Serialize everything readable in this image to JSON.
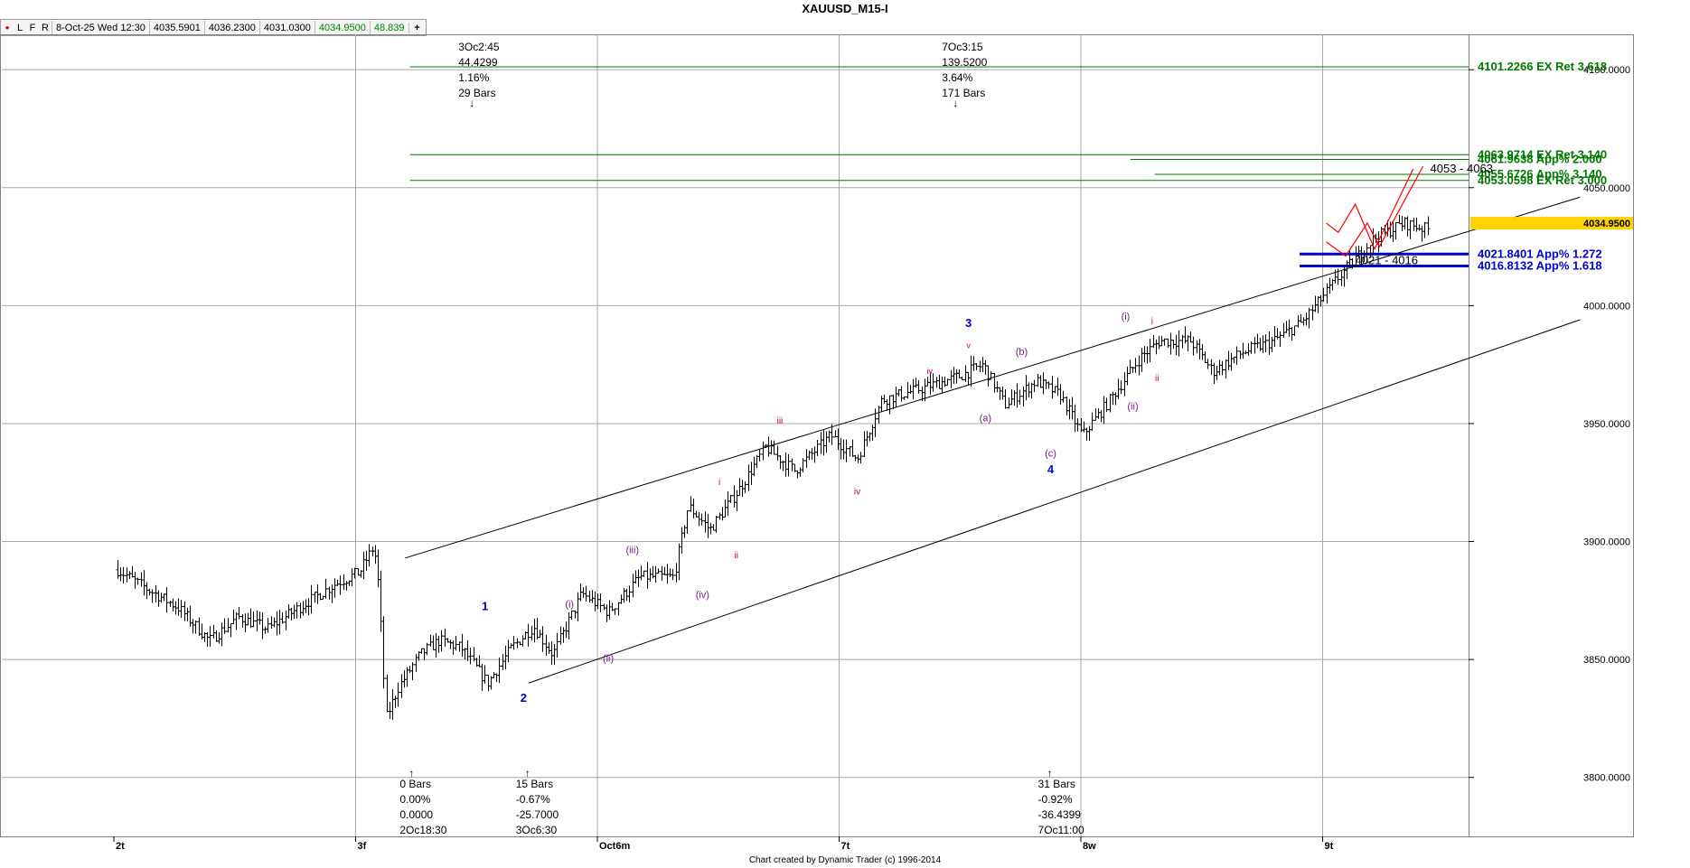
{
  "window": {
    "title": "XAUUSD_M15-I"
  },
  "infobar": {
    "buttons": [
      "●",
      "L",
      "F",
      "R"
    ],
    "datetime": "8-Oct-25 Wed 12:30",
    "open": "4035.5901",
    "high": "4036.2300",
    "low": "4031.0300",
    "close": "4034.9500",
    "change": "48.839",
    "add_label": "+"
  },
  "credit": "Chart created by Dynamic Trader  (c) 1996-2014",
  "colors": {
    "bars": "#000000",
    "ratio_green": "#007700",
    "ratio_blue": "#0000cc",
    "wave_major": "#0000cc",
    "wave_purple": "#7a1a8a",
    "wave_red": "#cc0033",
    "projection": "#ff0000",
    "grid": "#a8a8a8",
    "current_price_bg": "#ffd200"
  },
  "chart_data": {
    "type": "ohlc",
    "symbol": "XAUUSD_M15-I",
    "x_ticks": [
      "2t",
      "3f",
      "Oct6m",
      "7t",
      "8w",
      "9t"
    ],
    "y_ticks": [
      "3800.0000",
      "3850.0000",
      "3900.0000",
      "3950.0000",
      "4000.0000",
      "4050.0000",
      "4100.0000"
    ],
    "ylim": [
      3775,
      4115
    ],
    "current_price": "4034.9500",
    "price_path": [
      [
        0.0,
        3888
      ],
      [
        0.12,
        3880
      ],
      [
        0.25,
        3872
      ],
      [
        0.38,
        3858
      ],
      [
        0.5,
        3868
      ],
      [
        0.62,
        3863
      ],
      [
        0.75,
        3872
      ],
      [
        0.9,
        3882
      ],
      [
        1.0,
        3887
      ],
      [
        1.06,
        3898
      ],
      [
        1.08,
        3880
      ],
      [
        1.11,
        3825
      ],
      [
        1.16,
        3838
      ],
      [
        1.25,
        3852
      ],
      [
        1.33,
        3858
      ],
      [
        1.42,
        3855
      ],
      [
        1.53,
        3840
      ],
      [
        1.63,
        3855
      ],
      [
        1.72,
        3864
      ],
      [
        1.8,
        3852
      ],
      [
        1.92,
        3878
      ],
      [
        2.03,
        3870
      ],
      [
        2.16,
        3885
      ],
      [
        2.3,
        3885
      ],
      [
        2.36,
        3915
      ],
      [
        2.45,
        3905
      ],
      [
        2.57,
        3922
      ],
      [
        2.68,
        3940
      ],
      [
        2.8,
        3930
      ],
      [
        2.95,
        3945
      ],
      [
        3.06,
        3935
      ],
      [
        3.16,
        3960
      ],
      [
        3.33,
        3965
      ],
      [
        3.48,
        3970
      ],
      [
        3.58,
        3975
      ],
      [
        3.67,
        3958
      ],
      [
        3.8,
        3968
      ],
      [
        3.9,
        3962
      ],
      [
        3.99,
        3945
      ],
      [
        4.09,
        3958
      ],
      [
        4.23,
        3978
      ],
      [
        4.31,
        3985
      ],
      [
        4.44,
        3985
      ],
      [
        4.53,
        3972
      ],
      [
        4.65,
        3980
      ],
      [
        4.78,
        3985
      ],
      [
        4.9,
        3993
      ],
      [
        5.05,
        4012
      ],
      [
        5.19,
        4028
      ],
      [
        5.32,
        4035
      ],
      [
        5.43,
        4032
      ]
    ],
    "channel_lines": [
      {
        "from": [
          1.19,
          3893
        ],
        "to": [
          6.05,
          4046
        ]
      },
      {
        "from": [
          1.7,
          3840
        ],
        "to": [
          6.05,
          3994
        ]
      }
    ],
    "ratio_lines": [
      {
        "label": "4101.2266 EX Ret 3.618",
        "price": 4101.2266,
        "color": "green",
        "x_start": 1.21
      },
      {
        "label": "4063.9714 EX Ret 3.140",
        "price": 4063.9714,
        "color": "green",
        "x_start": 1.21
      },
      {
        "label": "4061.9638 App% 2.000",
        "price": 4061.9638,
        "color": "green",
        "x_start": 4.19
      },
      {
        "label": "4055.6726 App% 3.140",
        "price": 4055.6726,
        "color": "green",
        "x_start": 4.29
      },
      {
        "label": "4053.0598 EX Ret 3.000",
        "price": 4053.0598,
        "color": "green",
        "x_start": 1.21
      },
      {
        "label": "4021.8401 App% 1.272",
        "price": 4021.8401,
        "color": "blue",
        "x_start": 4.89
      },
      {
        "label": "4016.8132 App% 1.618",
        "price": 4016.8132,
        "color": "blue",
        "x_start": 4.89
      }
    ],
    "zones": [
      {
        "label": "4053 - 4063",
        "x": 5.43,
        "price": 4058
      },
      {
        "label": "4021 - 4016",
        "x": 5.12,
        "price": 4019
      }
    ],
    "projection_paths": [
      [
        [
          5.0,
          4035
        ],
        [
          5.05,
          4031
        ],
        [
          5.12,
          4043
        ],
        [
          5.2,
          4024
        ],
        [
          5.36,
          4058
        ]
      ],
      [
        [
          5.0,
          4027
        ],
        [
          5.08,
          4021
        ],
        [
          5.17,
          4035
        ],
        [
          5.22,
          4025
        ],
        [
          5.4,
          4059
        ]
      ]
    ],
    "wave_labels": [
      {
        "text": "1",
        "x": 1.52,
        "price": 3871,
        "kind": "major"
      },
      {
        "text": "2",
        "x": 1.68,
        "price": 3832,
        "kind": "major"
      },
      {
        "text": "3",
        "x": 3.52,
        "price": 3991,
        "kind": "major"
      },
      {
        "text": "4",
        "x": 3.86,
        "price": 3929,
        "kind": "major"
      },
      {
        "text": "(i)",
        "x": 1.87,
        "price": 3872,
        "kind": "minor"
      },
      {
        "text": "(ii)",
        "x": 2.03,
        "price": 3849,
        "kind": "minor"
      },
      {
        "text": "(iii)",
        "x": 2.13,
        "price": 3895,
        "kind": "minor"
      },
      {
        "text": "(iv)",
        "x": 2.42,
        "price": 3876,
        "kind": "minor"
      },
      {
        "text": "(a)",
        "x": 3.59,
        "price": 3951,
        "kind": "minor"
      },
      {
        "text": "(b)",
        "x": 3.74,
        "price": 3979,
        "kind": "minor"
      },
      {
        "text": "(c)",
        "x": 3.86,
        "price": 3936,
        "kind": "minor"
      },
      {
        "text": "(i)",
        "x": 4.17,
        "price": 3994,
        "kind": "minor"
      },
      {
        "text": "(ii)",
        "x": 4.2,
        "price": 3956,
        "kind": "minor"
      },
      {
        "text": "v",
        "x": 3.52,
        "price": 3982,
        "kind": "red_small"
      },
      {
        "text": "iv",
        "x": 3.36,
        "price": 3971,
        "kind": "red_small"
      },
      {
        "text": "i",
        "x": 2.49,
        "price": 3924,
        "kind": "red"
      },
      {
        "text": "ii",
        "x": 2.56,
        "price": 3893,
        "kind": "red"
      },
      {
        "text": "iii",
        "x": 2.74,
        "price": 3950,
        "kind": "red"
      },
      {
        "text": "iv",
        "x": 3.06,
        "price": 3920,
        "kind": "red"
      },
      {
        "text": "i",
        "x": 4.28,
        "price": 3992,
        "kind": "red"
      },
      {
        "text": "ii",
        "x": 4.3,
        "price": 3968,
        "kind": "red"
      }
    ],
    "annotations_top": [
      {
        "x": 1.47,
        "lines": [
          "3Oc2:45",
          "44.4299",
          "1.16%",
          "29 Bars"
        ]
      },
      {
        "x": 3.47,
        "lines": [
          "7Oc3:15",
          "139.5200",
          "3.64%",
          "171 Bars"
        ]
      }
    ],
    "annotations_bottom": [
      {
        "x": 1.22,
        "lines": [
          "0 Bars",
          "0.00%",
          "0.0000",
          "2Oc18:30"
        ]
      },
      {
        "x": 1.7,
        "lines": [
          "15 Bars",
          "-0.67%",
          "-25.7000",
          "3Oc6:30"
        ]
      },
      {
        "x": 3.86,
        "lines": [
          "31 Bars",
          "-0.92%",
          "-36.4399",
          "7Oc11:00"
        ]
      }
    ]
  }
}
